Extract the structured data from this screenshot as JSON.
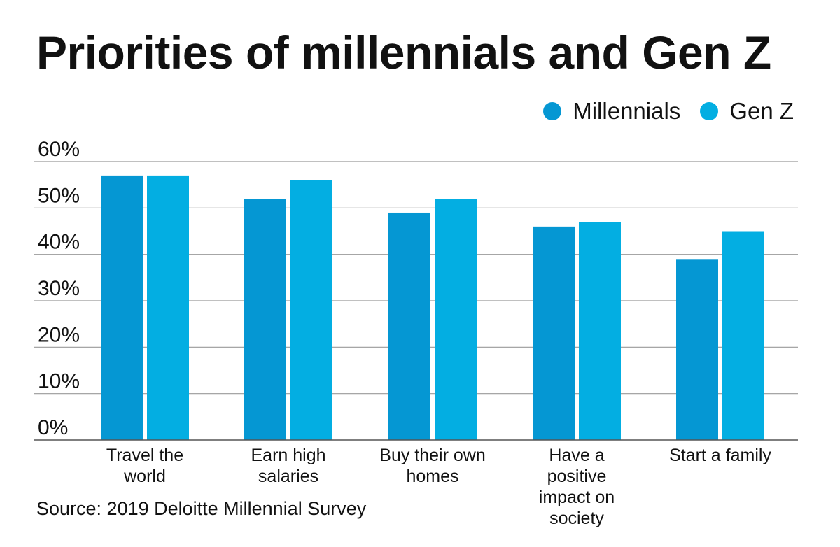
{
  "title": "Priorities of millennials and Gen Z",
  "source": "Source: 2019 Deloitte Millennial Survey",
  "colors": {
    "millennials": "#0597d3",
    "genz": "#03aee2",
    "grid": "#9a9a9a",
    "axis": "#555555"
  },
  "legend": [
    {
      "label": "Millennials",
      "color": "#0597d3"
    },
    {
      "label": "Gen Z",
      "color": "#03aee2"
    }
  ],
  "chart_data": {
    "type": "bar",
    "title": "Priorities of millennials and Gen Z",
    "categories": [
      [
        "Travel the",
        "world"
      ],
      [
        "Earn high",
        "salaries"
      ],
      [
        "Buy their own",
        "homes"
      ],
      [
        "Have a",
        "positive",
        "impact on",
        "society"
      ],
      [
        "Start a family"
      ]
    ],
    "series": [
      {
        "name": "Millennials",
        "values": [
          57,
          52,
          49,
          46,
          39
        ]
      },
      {
        "name": "Gen Z",
        "values": [
          57,
          56,
          52,
          47,
          45
        ]
      }
    ],
    "yticks": [
      "0%",
      "10%",
      "20%",
      "30%",
      "40%",
      "50%",
      "60%"
    ],
    "ylim": [
      0,
      60
    ],
    "grid": true,
    "legend_position": "top-right"
  }
}
